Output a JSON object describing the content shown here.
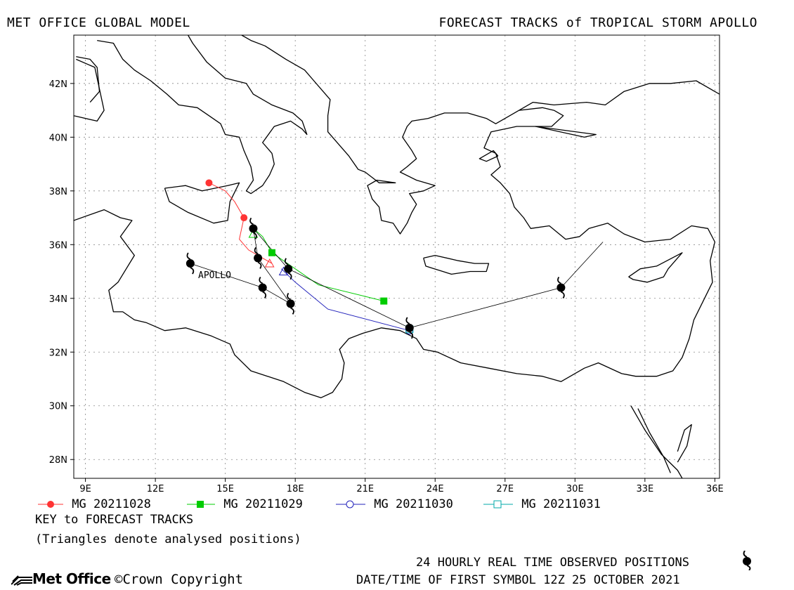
{
  "header": {
    "left": "MET OFFICE GLOBAL MODEL",
    "right": "FORECAST TRACKS of TROPICAL STORM APOLLO"
  },
  "axes": {
    "lon_range": [
      8.5,
      36.2
    ],
    "lat_range": [
      27.3,
      43.8
    ],
    "lon_ticks": [
      {
        "v": 9,
        "label": "9E"
      },
      {
        "v": 12,
        "label": "12E"
      },
      {
        "v": 15,
        "label": "15E"
      },
      {
        "v": 18,
        "label": "18E"
      },
      {
        "v": 21,
        "label": "21E"
      },
      {
        "v": 24,
        "label": "24E"
      },
      {
        "v": 27,
        "label": "27E"
      },
      {
        "v": 30,
        "label": "30E"
      },
      {
        "v": 33,
        "label": "33E"
      },
      {
        "v": 36,
        "label": "36E"
      }
    ],
    "lat_ticks": [
      {
        "v": 28,
        "label": "28N"
      },
      {
        "v": 30,
        "label": "30N"
      },
      {
        "v": 32,
        "label": "32N"
      },
      {
        "v": 34,
        "label": "34N"
      },
      {
        "v": 36,
        "label": "36N"
      },
      {
        "v": 38,
        "label": "38N"
      },
      {
        "v": 40,
        "label": "40N"
      },
      {
        "v": 42,
        "label": "42N"
      }
    ]
  },
  "storm_label": "APOLLO",
  "observed_track": {
    "color": "#000000",
    "points": [
      [
        13.5,
        35.3
      ],
      [
        16.6,
        34.4
      ],
      [
        17.8,
        33.8
      ],
      [
        16.4,
        35.5
      ],
      [
        16.2,
        36.6
      ],
      [
        17.7,
        35.1
      ],
      [
        22.9,
        32.9
      ],
      [
        29.4,
        34.4
      ],
      [
        31.2,
        36.1
      ]
    ],
    "symbol_points": [
      [
        13.5,
        35.3
      ],
      [
        16.6,
        34.4
      ],
      [
        17.8,
        33.8
      ],
      [
        16.4,
        35.5
      ],
      [
        16.2,
        36.6
      ],
      [
        17.7,
        35.1
      ],
      [
        22.9,
        32.9
      ],
      [
        29.4,
        34.4
      ]
    ]
  },
  "forecast_tracks": [
    {
      "name": "MG 20211028",
      "color": "#ff3333",
      "marker": "filled-circle",
      "points": [
        [
          14.3,
          38.3
        ],
        [
          15.0,
          38.0
        ],
        [
          15.4,
          37.6
        ],
        [
          15.8,
          37.0
        ],
        [
          15.6,
          36.2
        ],
        [
          16.0,
          35.8
        ],
        [
          16.6,
          35.5
        ],
        [
          17.0,
          35.3
        ]
      ],
      "markers": [
        [
          14.3,
          38.3
        ],
        [
          15.8,
          37.0
        ]
      ],
      "analysed": [
        [
          16.9,
          35.3
        ]
      ]
    },
    {
      "name": "MG 20211029",
      "color": "#00cc00",
      "marker": "filled-square",
      "points": [
        [
          16.2,
          36.6
        ],
        [
          16.6,
          36.3
        ],
        [
          17.0,
          35.7
        ],
        [
          19.0,
          34.5
        ],
        [
          21.8,
          33.9
        ]
      ],
      "markers": [
        [
          17.0,
          35.7
        ],
        [
          21.8,
          33.9
        ]
      ],
      "analysed": [
        [
          16.2,
          36.4
        ]
      ]
    },
    {
      "name": "MG 20211030",
      "color": "#2222bb",
      "marker": "open-circle",
      "points": [
        [
          17.4,
          35.1
        ],
        [
          18.0,
          34.6
        ],
        [
          19.4,
          33.6
        ],
        [
          22.9,
          32.8
        ]
      ],
      "markers": [
        [
          22.9,
          32.8
        ]
      ],
      "analysed": [
        [
          17.5,
          35.0
        ]
      ]
    },
    {
      "name": "MG 20211031",
      "color": "#00aaaa",
      "marker": "open-square",
      "points": [
        [
          22.9,
          32.9
        ],
        [
          22.85,
          32.85
        ]
      ],
      "markers": [
        [
          22.9,
          32.85
        ]
      ],
      "analysed": []
    }
  ],
  "legend": {
    "key_title": "KEY to FORECAST TRACKS",
    "key_note": "(Triangles denote analysed positions)"
  },
  "footer": {
    "observed_note": "24 HOURLY REAL TIME OBSERVED POSITIONS",
    "datetime": "DATE/TIME OF FIRST SYMBOL 12Z 25 OCTOBER 2021",
    "logo": "Met Office",
    "copyright": "Crown Copyright"
  },
  "coastlines": [
    [
      [
        8.5,
        40.8
      ],
      [
        9.5,
        40.6
      ],
      [
        9.8,
        41.0
      ],
      [
        9.6,
        41.8
      ],
      [
        9.4,
        42.6
      ],
      [
        8.6,
        42.9
      ]
    ],
    [
      [
        9.2,
        41.3
      ],
      [
        9.6,
        41.7
      ],
      [
        9.5,
        42.6
      ],
      [
        9.2,
        42.9
      ],
      [
        8.6,
        43.0
      ]
    ],
    [
      [
        9.5,
        43.6
      ],
      [
        10.2,
        43.5
      ],
      [
        10.6,
        42.9
      ],
      [
        11.1,
        42.5
      ],
      [
        11.8,
        42.1
      ],
      [
        12.5,
        41.6
      ],
      [
        13.0,
        41.2
      ],
      [
        13.8,
        41.1
      ],
      [
        14.3,
        40.8
      ],
      [
        14.8,
        40.5
      ],
      [
        15.0,
        40.1
      ],
      [
        15.6,
        40.0
      ],
      [
        15.8,
        39.5
      ],
      [
        16.1,
        38.9
      ],
      [
        16.2,
        38.4
      ],
      [
        15.9,
        38.0
      ],
      [
        16.1,
        37.9
      ],
      [
        16.6,
        38.2
      ],
      [
        16.9,
        38.6
      ],
      [
        17.1,
        39.0
      ],
      [
        17.0,
        39.4
      ],
      [
        16.6,
        39.8
      ],
      [
        17.1,
        40.4
      ],
      [
        17.8,
        40.6
      ],
      [
        18.3,
        40.3
      ],
      [
        18.5,
        40.1
      ],
      [
        18.3,
        40.6
      ],
      [
        17.9,
        40.9
      ],
      [
        17.0,
        41.2
      ],
      [
        16.2,
        41.6
      ],
      [
        15.9,
        42.0
      ],
      [
        15.0,
        42.2
      ],
      [
        14.2,
        42.8
      ],
      [
        13.6,
        43.5
      ],
      [
        13.4,
        43.8
      ]
    ],
    [
      [
        12.4,
        38.1
      ],
      [
        13.3,
        38.2
      ],
      [
        14.0,
        38.0
      ],
      [
        15.1,
        38.2
      ],
      [
        15.6,
        38.3
      ],
      [
        15.2,
        37.6
      ],
      [
        15.1,
        36.9
      ],
      [
        14.5,
        36.8
      ],
      [
        13.4,
        37.2
      ],
      [
        12.6,
        37.6
      ],
      [
        12.4,
        38.1
      ]
    ],
    [
      [
        8.5,
        36.9
      ],
      [
        9.8,
        37.3
      ],
      [
        10.5,
        37.0
      ],
      [
        11.0,
        36.9
      ],
      [
        10.5,
        36.3
      ],
      [
        11.1,
        35.6
      ],
      [
        10.4,
        34.6
      ],
      [
        10.0,
        34.3
      ],
      [
        10.2,
        33.5
      ],
      [
        10.6,
        33.5
      ],
      [
        11.1,
        33.2
      ],
      [
        11.6,
        33.1
      ],
      [
        12.4,
        32.8
      ],
      [
        13.3,
        32.9
      ],
      [
        14.4,
        32.6
      ],
      [
        15.2,
        32.3
      ],
      [
        15.4,
        31.9
      ],
      [
        16.1,
        31.3
      ],
      [
        17.5,
        30.9
      ],
      [
        18.4,
        30.5
      ],
      [
        19.1,
        30.3
      ],
      [
        19.6,
        30.5
      ],
      [
        20.0,
        31.0
      ],
      [
        20.1,
        31.6
      ],
      [
        19.9,
        32.1
      ],
      [
        20.3,
        32.5
      ],
      [
        20.9,
        32.7
      ],
      [
        21.7,
        32.9
      ],
      [
        22.5,
        32.8
      ],
      [
        23.2,
        32.5
      ],
      [
        23.5,
        32.1
      ],
      [
        24.1,
        32.0
      ],
      [
        25.1,
        31.6
      ],
      [
        26.3,
        31.4
      ],
      [
        27.5,
        31.2
      ],
      [
        28.6,
        31.1
      ],
      [
        29.4,
        30.9
      ],
      [
        30.4,
        31.4
      ],
      [
        31.0,
        31.6
      ],
      [
        32.0,
        31.2
      ],
      [
        32.6,
        31.1
      ],
      [
        33.5,
        31.1
      ],
      [
        34.2,
        31.3
      ],
      [
        34.6,
        31.8
      ],
      [
        34.9,
        32.5
      ],
      [
        35.1,
        33.2
      ],
      [
        35.5,
        33.9
      ],
      [
        35.9,
        34.6
      ],
      [
        35.8,
        35.4
      ],
      [
        36.0,
        36.1
      ],
      [
        35.7,
        36.6
      ],
      [
        35.0,
        36.7
      ],
      [
        34.1,
        36.2
      ],
      [
        33.0,
        36.1
      ],
      [
        32.1,
        36.4
      ],
      [
        31.4,
        36.8
      ],
      [
        30.6,
        36.6
      ],
      [
        30.2,
        36.3
      ],
      [
        29.6,
        36.2
      ],
      [
        28.9,
        36.7
      ],
      [
        28.1,
        36.6
      ],
      [
        27.8,
        37.0
      ],
      [
        27.4,
        37.4
      ],
      [
        27.2,
        37.9
      ],
      [
        26.8,
        38.3
      ],
      [
        26.4,
        38.6
      ],
      [
        26.8,
        38.9
      ],
      [
        26.6,
        39.4
      ],
      [
        26.1,
        39.6
      ],
      [
        26.3,
        40.0
      ],
      [
        26.4,
        40.2
      ],
      [
        27.5,
        40.4
      ],
      [
        28.1,
        40.4
      ],
      [
        29.0,
        40.4
      ],
      [
        29.5,
        40.8
      ],
      [
        29.1,
        41.0
      ],
      [
        28.6,
        41.1
      ],
      [
        27.6,
        41.0
      ],
      [
        27.0,
        40.7
      ],
      [
        26.6,
        40.5
      ],
      [
        26.2,
        40.7
      ],
      [
        25.4,
        40.9
      ],
      [
        24.4,
        40.9
      ],
      [
        23.7,
        40.7
      ],
      [
        23.0,
        40.6
      ],
      [
        22.8,
        40.4
      ],
      [
        22.6,
        40.0
      ],
      [
        23.0,
        39.5
      ],
      [
        23.2,
        39.2
      ],
      [
        22.8,
        38.9
      ],
      [
        22.5,
        38.7
      ],
      [
        23.2,
        38.4
      ],
      [
        24.0,
        38.2
      ],
      [
        23.5,
        38.0
      ],
      [
        22.9,
        37.9
      ],
      [
        23.2,
        37.5
      ],
      [
        23.0,
        37.2
      ],
      [
        22.8,
        36.8
      ],
      [
        22.5,
        36.4
      ],
      [
        22.2,
        36.8
      ],
      [
        21.7,
        36.9
      ],
      [
        21.6,
        37.4
      ],
      [
        21.3,
        37.7
      ],
      [
        21.1,
        38.2
      ],
      [
        21.5,
        38.4
      ],
      [
        22.3,
        38.3
      ],
      [
        21.6,
        38.3
      ],
      [
        21.0,
        38.7
      ],
      [
        20.7,
        38.8
      ],
      [
        20.3,
        39.3
      ],
      [
        19.9,
        39.7
      ],
      [
        19.4,
        40.2
      ],
      [
        19.4,
        40.8
      ],
      [
        19.5,
        41.4
      ],
      [
        18.8,
        42.1
      ],
      [
        18.4,
        42.5
      ],
      [
        17.6,
        42.9
      ],
      [
        16.7,
        43.4
      ],
      [
        16.1,
        43.6
      ],
      [
        15.7,
        43.8
      ]
    ],
    [
      [
        23.5,
        35.5
      ],
      [
        24.0,
        35.6
      ],
      [
        25.0,
        35.4
      ],
      [
        25.7,
        35.3
      ],
      [
        26.3,
        35.3
      ],
      [
        26.2,
        35.0
      ],
      [
        25.5,
        35.0
      ],
      [
        24.7,
        34.9
      ],
      [
        23.6,
        35.2
      ],
      [
        23.5,
        35.5
      ]
    ],
    [
      [
        32.3,
        34.8
      ],
      [
        32.8,
        35.1
      ],
      [
        33.5,
        35.2
      ],
      [
        34.6,
        35.7
      ],
      [
        34.0,
        35.1
      ],
      [
        33.8,
        34.8
      ],
      [
        33.1,
        34.6
      ],
      [
        32.5,
        34.7
      ],
      [
        32.3,
        34.8
      ]
    ],
    [
      [
        27.6,
        41.0
      ],
      [
        28.2,
        41.3
      ],
      [
        29.1,
        41.2
      ],
      [
        30.5,
        41.3
      ],
      [
        31.3,
        41.2
      ],
      [
        32.1,
        41.7
      ],
      [
        33.2,
        42.0
      ],
      [
        34.1,
        42.0
      ],
      [
        35.2,
        42.1
      ],
      [
        36.2,
        41.6
      ]
    ],
    [
      [
        28.3,
        40.4
      ],
      [
        30.4,
        40.0
      ],
      [
        30.9,
        40.1
      ],
      [
        28.3,
        40.4
      ]
    ],
    [
      [
        32.4,
        30.0
      ],
      [
        33.0,
        29.1
      ],
      [
        33.7,
        28.2
      ],
      [
        34.4,
        27.6
      ],
      [
        34.6,
        27.3
      ]
    ],
    [
      [
        32.7,
        29.9
      ],
      [
        33.2,
        29.0
      ],
      [
        33.8,
        28.1
      ],
      [
        34.1,
        27.5
      ]
    ],
    [
      [
        34.4,
        27.9
      ],
      [
        34.8,
        28.5
      ],
      [
        35.0,
        29.3
      ],
      [
        34.7,
        29.1
      ],
      [
        34.4,
        28.3
      ]
    ],
    [
      [
        26.7,
        39.3
      ],
      [
        26.2,
        39.1
      ],
      [
        25.9,
        39.2
      ],
      [
        26.5,
        39.5
      ],
      [
        26.7,
        39.3
      ]
    ]
  ]
}
